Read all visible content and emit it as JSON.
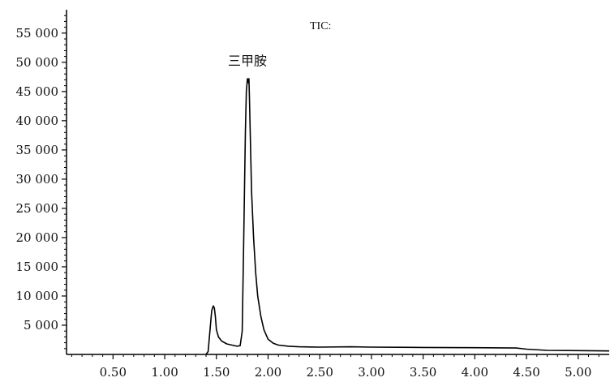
{
  "chart_data": {
    "type": "line",
    "title": "TIC:",
    "xlabel": "",
    "ylabel": "",
    "xlim": [
      0.05,
      5.3
    ],
    "ylim": [
      0,
      59000
    ],
    "x_ticks": [
      {
        "value": 0.5,
        "label": "0.50"
      },
      {
        "value": 1.0,
        "label": "1.00"
      },
      {
        "value": 1.5,
        "label": "1.50"
      },
      {
        "value": 2.0,
        "label": "2.00"
      },
      {
        "value": 2.5,
        "label": "2.50"
      },
      {
        "value": 3.0,
        "label": "3.00"
      },
      {
        "value": 3.5,
        "label": "3.50"
      },
      {
        "value": 4.0,
        "label": "4.00"
      },
      {
        "value": 4.5,
        "label": "4.50"
      },
      {
        "value": 5.0,
        "label": "5.00"
      }
    ],
    "y_ticks": [
      {
        "value": 5000,
        "label": "5 000"
      },
      {
        "value": 10000,
        "label": "10 000"
      },
      {
        "value": 15000,
        "label": "15 000"
      },
      {
        "value": 20000,
        "label": "20 000"
      },
      {
        "value": 25000,
        "label": "25 000"
      },
      {
        "value": 30000,
        "label": "30 000"
      },
      {
        "value": 35000,
        "label": "35 000"
      },
      {
        "value": 40000,
        "label": "40 000"
      },
      {
        "value": 45000,
        "label": "45 000"
      },
      {
        "value": 50000,
        "label": "50 000"
      },
      {
        "value": 55000,
        "label": "55 000"
      }
    ],
    "annotations": [
      {
        "text": "三甲胺",
        "x": 1.8,
        "y": 49500
      }
    ],
    "series": [
      {
        "color": "#000000",
        "x": [
          1.4,
          1.42,
          1.44,
          1.455,
          1.47,
          1.48,
          1.49,
          1.5,
          1.52,
          1.55,
          1.6,
          1.65,
          1.7,
          1.73,
          1.75,
          1.765,
          1.78,
          1.79,
          1.8,
          1.81,
          1.815,
          1.82,
          1.83,
          1.84,
          1.86,
          1.88,
          1.9,
          1.93,
          1.96,
          2.0,
          2.05,
          2.1,
          2.2,
          2.3,
          2.5,
          2.8,
          3.0,
          3.5,
          4.0,
          4.4,
          4.5,
          4.7,
          5.0,
          5.3
        ],
        "y": [
          0,
          500,
          4500,
          7500,
          8300,
          8000,
          6500,
          4200,
          3000,
          2300,
          1800,
          1600,
          1400,
          1500,
          4000,
          20000,
          38000,
          45000,
          47200,
          46500,
          47200,
          44000,
          36000,
          28000,
          20000,
          14000,
          10000,
          6500,
          4200,
          2600,
          1900,
          1600,
          1400,
          1300,
          1250,
          1300,
          1250,
          1200,
          1150,
          1100,
          900,
          700,
          650,
          600
        ]
      }
    ]
  }
}
